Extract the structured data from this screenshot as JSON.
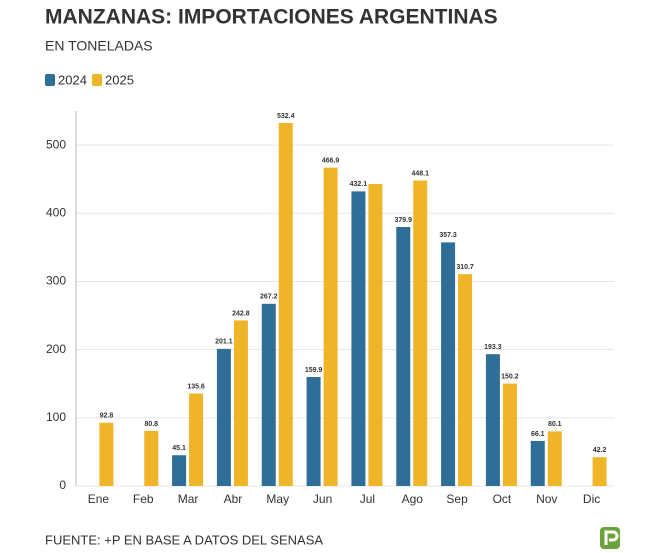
{
  "chart_data": {
    "type": "bar",
    "title": "MANZANAS: IMPORTACIONES ARGENTINAS",
    "subtitle": "EN TONELADAS",
    "source": "FUENTE: +P EN BASE A DATOS DEL SENASA",
    "categories": [
      "Ene",
      "Feb",
      "Mar",
      "Abr",
      "May",
      "Jun",
      "Jul",
      "Ago",
      "Sep",
      "Oct",
      "Nov",
      "Dic"
    ],
    "series": [
      {
        "name": "2024",
        "color": "#2f6e97",
        "values": [
          null,
          null,
          45.1,
          201.1,
          267.2,
          159.9,
          432.1,
          379.9,
          357.3,
          193.3,
          66.1,
          null
        ]
      },
      {
        "name": "2025",
        "color": "#f0b429",
        "values": [
          92.8,
          80.8,
          135.6,
          242.8,
          532.4,
          466.9,
          443,
          448.1,
          310.7,
          150.2,
          80.1,
          42.2
        ],
        "value_labels": [
          "92.8",
          "80.8",
          "135.6",
          "242.8",
          "532.4",
          "466.9",
          null,
          "448.1",
          "310.7",
          "150.2",
          "80.1",
          "42.2"
        ]
      }
    ],
    "ylim": [
      0,
      550
    ],
    "yticks": [
      0,
      100,
      200,
      300,
      400,
      500
    ],
    "grid": true,
    "legend": "top-left"
  }
}
